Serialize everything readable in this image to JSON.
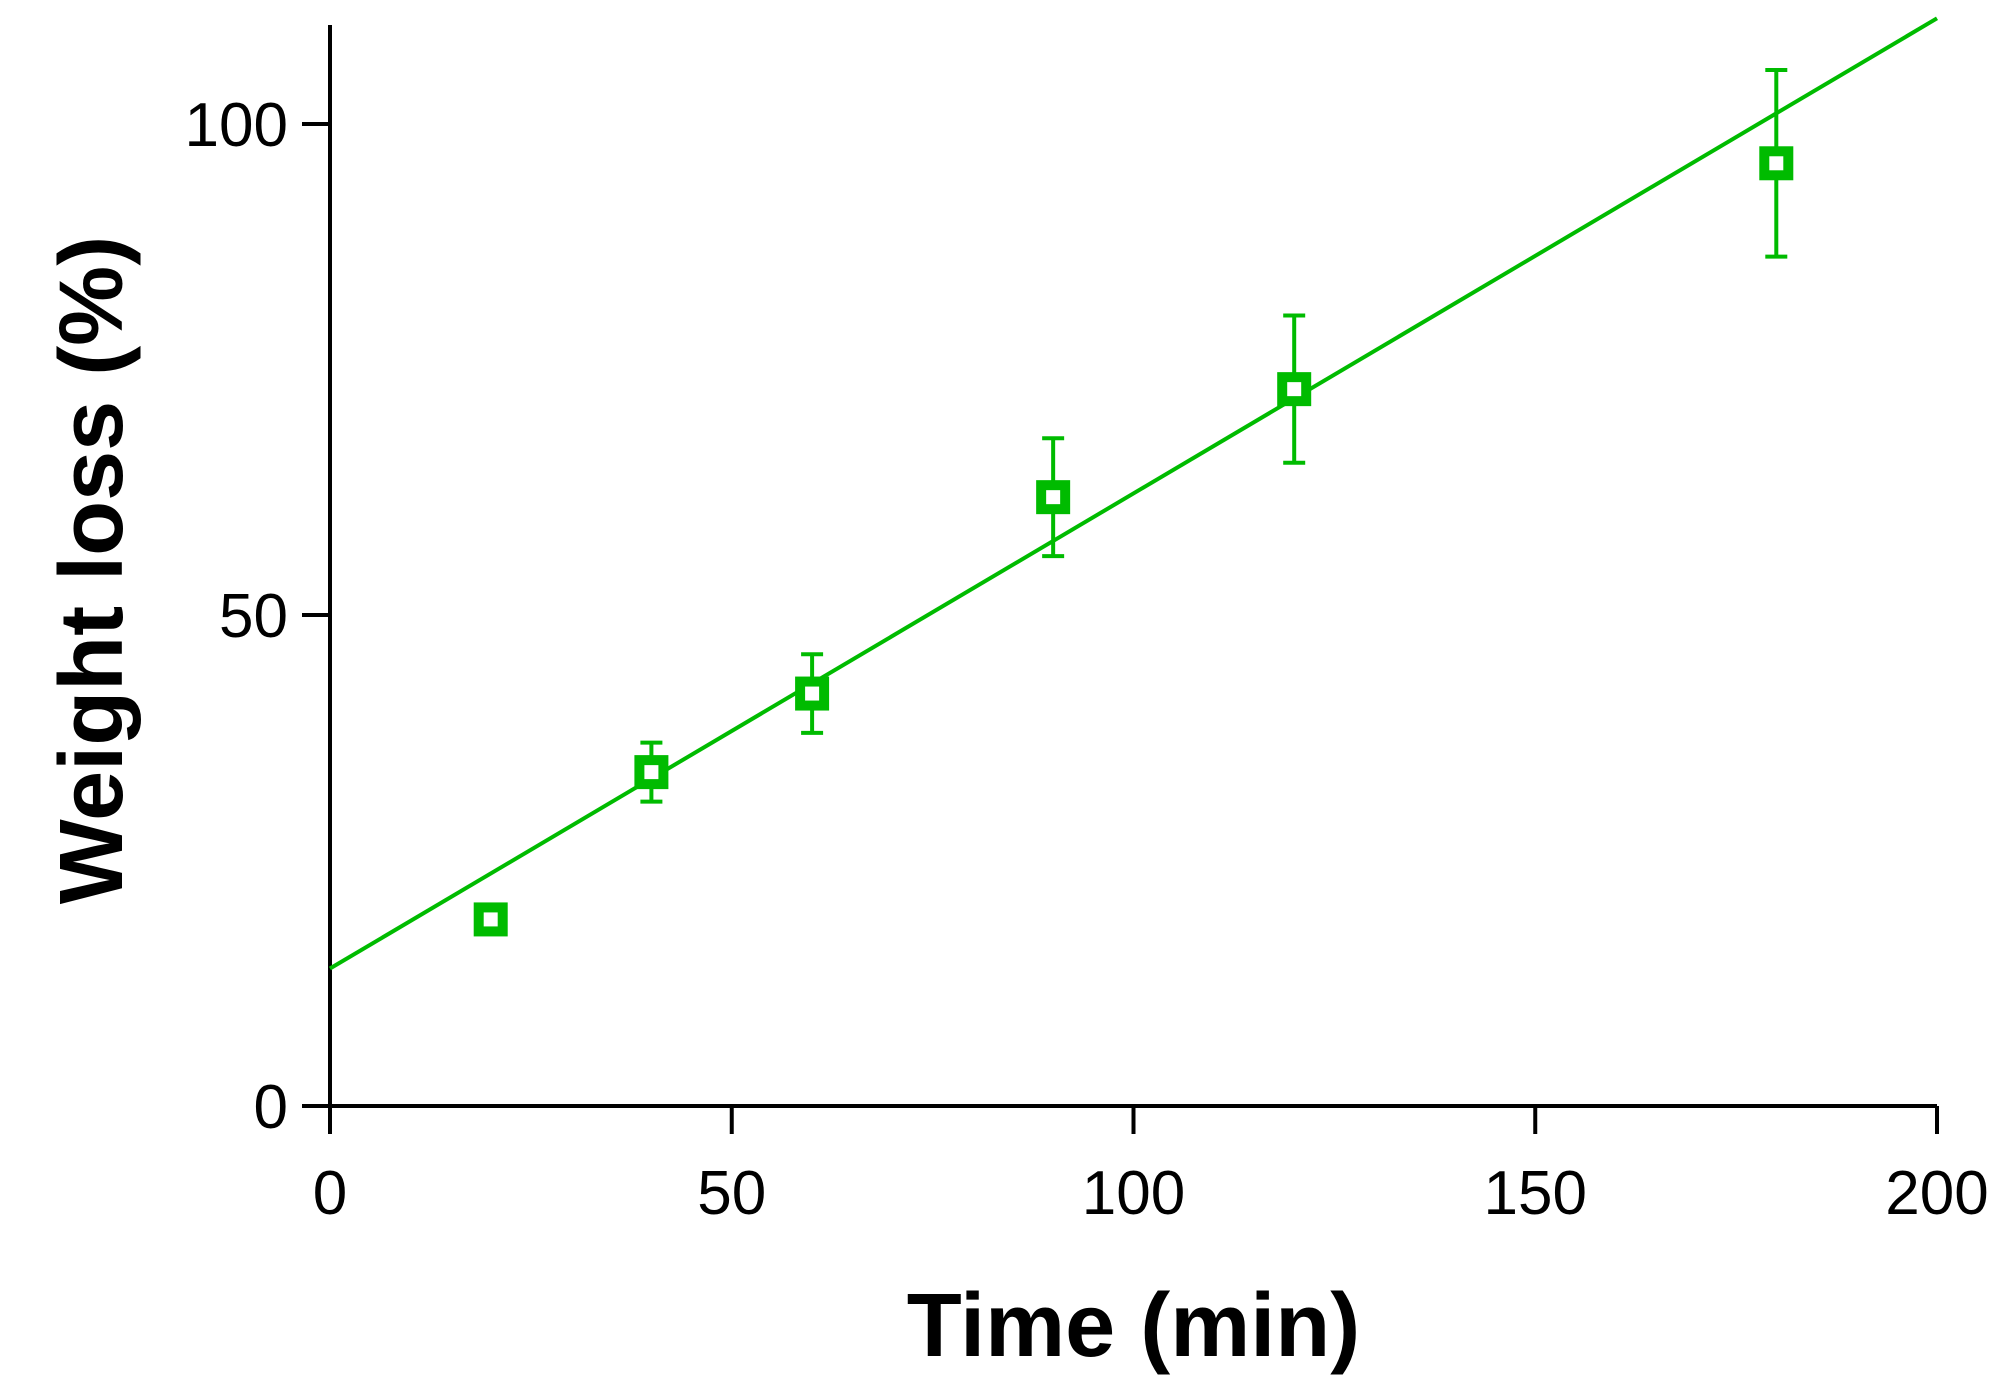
{
  "chart_data": {
    "type": "scatter",
    "xlabel": "Time (min)",
    "ylabel": "Weight loss (%)",
    "xlim": [
      0,
      200
    ],
    "ylim": [
      0,
      110
    ],
    "xticks": [
      0,
      50,
      100,
      150,
      200
    ],
    "yticks": [
      0,
      50,
      100
    ],
    "grid": false,
    "color": "#00bb00",
    "series": [
      {
        "points": [
          {
            "x": 20,
            "y": 19,
            "err": 1
          },
          {
            "x": 40,
            "y": 34,
            "err": 3
          },
          {
            "x": 60,
            "y": 42,
            "err": 4
          },
          {
            "x": 90,
            "y": 62,
            "err": 6
          },
          {
            "x": 120,
            "y": 73,
            "err": 7.5
          },
          {
            "x": 180,
            "y": 96,
            "err": 9.5
          }
        ]
      }
    ],
    "fit_line": {
      "intercept": 14,
      "slope": 0.4838
    }
  }
}
